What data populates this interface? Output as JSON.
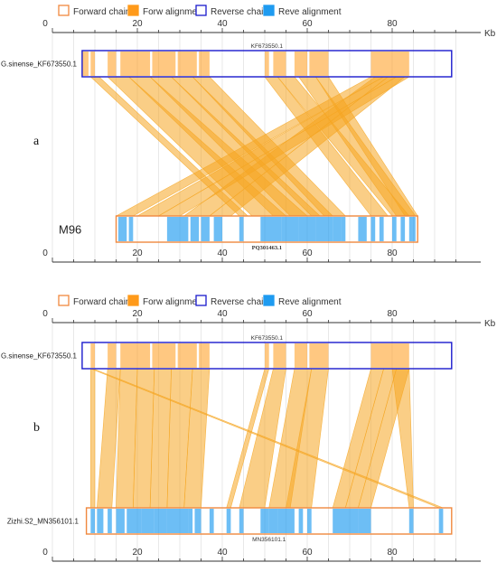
{
  "colors": {
    "forward_chain": "#f0883e",
    "forward_alignment": "#ff9a1a",
    "reverse_chain": "#1a1acd",
    "reverse_alignment": "#1e9bf0",
    "link": "#f5a623",
    "grid": "#d8d8d8",
    "axis": "#333333"
  },
  "panels": [
    {
      "id": "a",
      "panel_label": "a",
      "legend": [
        {
          "key": "forward_chain",
          "label": "Forward chain",
          "style": "outline",
          "color": "#f0883e"
        },
        {
          "key": "forward_alignment",
          "label": "Forw alignment",
          "style": "filled",
          "color": "#ff9a1a"
        },
        {
          "key": "reverse_chain",
          "label": "Reverse chain",
          "style": "outline",
          "color": "#1a1acd"
        },
        {
          "key": "reverse_alignment",
          "label": "Reve alignment",
          "style": "filled",
          "color": "#1e9bf0"
        }
      ],
      "axis": {
        "unit": "Kb",
        "ticks": [
          0,
          20,
          40,
          60,
          80
        ],
        "max": 100
      },
      "top": {
        "name": "G.sinense_KF673550.1",
        "accession": "KF673550.1",
        "chain": "reverse",
        "start": 7,
        "end": 94,
        "blocks": [
          [
            7,
            8.5
          ],
          [
            9,
            10
          ],
          [
            13,
            15
          ],
          [
            16,
            23
          ],
          [
            23.5,
            29
          ],
          [
            29.5,
            34
          ],
          [
            34.5,
            37
          ],
          [
            50,
            51
          ],
          [
            52,
            55
          ],
          [
            57,
            60
          ],
          [
            60.5,
            65
          ],
          [
            75,
            84
          ]
        ]
      },
      "bottom": {
        "name": "M96",
        "accession": "PQ301463.1",
        "chain": "forward",
        "start": 15,
        "end": 86,
        "blocks": [
          [
            15.5,
            17.5
          ],
          [
            18,
            19
          ],
          [
            27,
            30
          ],
          [
            30,
            32
          ],
          [
            32.5,
            34.5
          ],
          [
            35,
            37
          ],
          [
            38,
            40
          ],
          [
            44,
            45
          ],
          [
            49,
            54
          ],
          [
            54,
            58
          ],
          [
            58,
            62
          ],
          [
            62,
            66
          ],
          [
            66,
            68
          ],
          [
            68,
            69
          ],
          [
            72,
            74
          ],
          [
            75,
            76
          ],
          [
            77,
            78
          ],
          [
            80,
            81
          ],
          [
            82,
            83
          ],
          [
            84,
            85.5
          ]
        ]
      },
      "links": [
        {
          "t": [
            13,
            18
          ],
          "b": [
            47,
            55
          ]
        },
        {
          "t": [
            18,
            23
          ],
          "b": [
            52,
            60
          ]
        },
        {
          "t": [
            23,
            28
          ],
          "b": [
            56,
            63
          ]
        },
        {
          "t": [
            28,
            33
          ],
          "b": [
            61,
            66
          ]
        },
        {
          "t": [
            33,
            37
          ],
          "b": [
            64,
            69
          ]
        },
        {
          "t": [
            9,
            11
          ],
          "b": [
            44,
            46
          ]
        },
        {
          "t": [
            50,
            53
          ],
          "b": [
            75,
            79
          ]
        },
        {
          "t": [
            53,
            57
          ],
          "b": [
            80,
            84
          ]
        },
        {
          "t": [
            58,
            62
          ],
          "b": [
            81,
            85.5
          ]
        },
        {
          "t": [
            62,
            65
          ],
          "b": [
            83,
            86
          ]
        },
        {
          "t": [
            75,
            78
          ],
          "b": [
            15,
            19
          ]
        },
        {
          "t": [
            78,
            81
          ],
          "b": [
            20,
            25
          ]
        },
        {
          "t": [
            81,
            84
          ],
          "b": [
            25,
            30
          ]
        },
        {
          "t": [
            76,
            79
          ],
          "b": [
            31,
            37
          ]
        },
        {
          "t": [
            79,
            83
          ],
          "b": [
            37,
            42
          ]
        }
      ]
    },
    {
      "id": "b",
      "panel_label": "b",
      "legend": [
        {
          "key": "forward_chain",
          "label": "Forward chain",
          "style": "outline",
          "color": "#f0883e"
        },
        {
          "key": "forward_alignment",
          "label": "Forw alignment",
          "style": "filled",
          "color": "#ff9a1a"
        },
        {
          "key": "reverse_chain",
          "label": "Reverse chain",
          "style": "outline",
          "color": "#1a1acd"
        },
        {
          "key": "reverse_alignment",
          "label": "Reve alignment",
          "style": "filled",
          "color": "#1e9bf0"
        }
      ],
      "axis": {
        "unit": "Kb",
        "ticks": [
          0,
          20,
          40,
          60,
          80
        ],
        "max": 100
      },
      "top": {
        "name": "G.sinense_KF673550.1",
        "accession": "KF673550.1",
        "chain": "reverse",
        "start": 7,
        "end": 94,
        "blocks": [
          [
            9,
            10
          ],
          [
            13,
            15
          ],
          [
            16,
            23
          ],
          [
            23.5,
            29
          ],
          [
            29.5,
            34
          ],
          [
            34.5,
            37
          ],
          [
            50,
            51
          ],
          [
            52,
            55
          ],
          [
            57,
            60
          ],
          [
            60.5,
            65
          ],
          [
            75,
            84
          ]
        ]
      },
      "bottom": {
        "name": "Zizhi.S2_MN356101.1",
        "accession": "MN356101.1",
        "chain": "forward",
        "start": 8,
        "end": 94,
        "blocks": [
          [
            9,
            10
          ],
          [
            10.5,
            12
          ],
          [
            13,
            14
          ],
          [
            15,
            17
          ],
          [
            17.5,
            21
          ],
          [
            21,
            24
          ],
          [
            24,
            27
          ],
          [
            27,
            32
          ],
          [
            32,
            33
          ],
          [
            33.5,
            35
          ],
          [
            37,
            38
          ],
          [
            41,
            42
          ],
          [
            44,
            45
          ],
          [
            49,
            51
          ],
          [
            51,
            53
          ],
          [
            53,
            55
          ],
          [
            55,
            57
          ],
          [
            58,
            59
          ],
          [
            60,
            61
          ],
          [
            66,
            70
          ],
          [
            70,
            72
          ],
          [
            72,
            75
          ],
          [
            84,
            85
          ],
          [
            91,
            92
          ]
        ]
      },
      "links": [
        {
          "t": [
            9,
            10
          ],
          "b": [
            9,
            10
          ]
        },
        {
          "t": [
            13,
            16
          ],
          "b": [
            10.5,
            14
          ]
        },
        {
          "t": [
            16,
            20
          ],
          "b": [
            15,
            19
          ]
        },
        {
          "t": [
            20,
            24
          ],
          "b": [
            19,
            23
          ]
        },
        {
          "t": [
            24,
            28
          ],
          "b": [
            23,
            27
          ]
        },
        {
          "t": [
            28,
            33
          ],
          "b": [
            27,
            31
          ]
        },
        {
          "t": [
            33,
            37
          ],
          "b": [
            31,
            35
          ]
        },
        {
          "t": [
            50,
            51
          ],
          "b": [
            41,
            42
          ]
        },
        {
          "t": [
            52,
            55
          ],
          "b": [
            44,
            50
          ]
        },
        {
          "t": [
            57,
            61
          ],
          "b": [
            51,
            56
          ]
        },
        {
          "t": [
            61,
            65
          ],
          "b": [
            55,
            61
          ]
        },
        {
          "t": [
            75,
            78
          ],
          "b": [
            66,
            69
          ]
        },
        {
          "t": [
            78,
            81
          ],
          "b": [
            69,
            72
          ]
        },
        {
          "t": [
            81,
            84
          ],
          "b": [
            72,
            75
          ]
        },
        {
          "t": [
            80,
            84
          ],
          "b": [
            84,
            85
          ]
        },
        {
          "t": [
            9,
            9.6
          ],
          "b": [
            91,
            92
          ]
        }
      ]
    }
  ]
}
